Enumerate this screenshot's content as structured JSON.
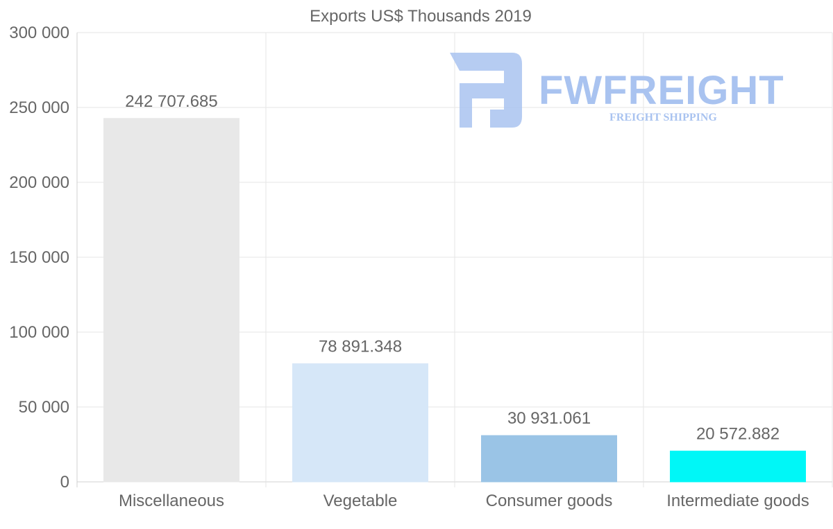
{
  "chart_data": {
    "type": "bar",
    "title": "Exports US$ Thousands 2019",
    "categories": [
      "Miscellaneous",
      "Vegetable",
      "Consumer goods",
      "Intermediate goods"
    ],
    "values": [
      242707.685,
      78891.348,
      30931.061,
      20572.882
    ],
    "value_labels": [
      "242 707.685",
      "78 891.348",
      "30 931.061",
      "20 572.882"
    ],
    "colors": [
      "#e8e8e8",
      "#d6e7f8",
      "#9ac4e6",
      "#00f7f7"
    ],
    "ylim": [
      0,
      300000
    ],
    "yticks": [
      0,
      50000,
      100000,
      150000,
      200000,
      250000,
      300000
    ],
    "ytick_labels": [
      "0",
      "50 000",
      "100 000",
      "150 000",
      "200 000",
      "250 000",
      "300 000"
    ],
    "xlabel": "",
    "ylabel": "",
    "grid": true
  },
  "watermark": {
    "brand": "FWFREIGHT",
    "tagline": "FREIGHT SHIPPING"
  }
}
